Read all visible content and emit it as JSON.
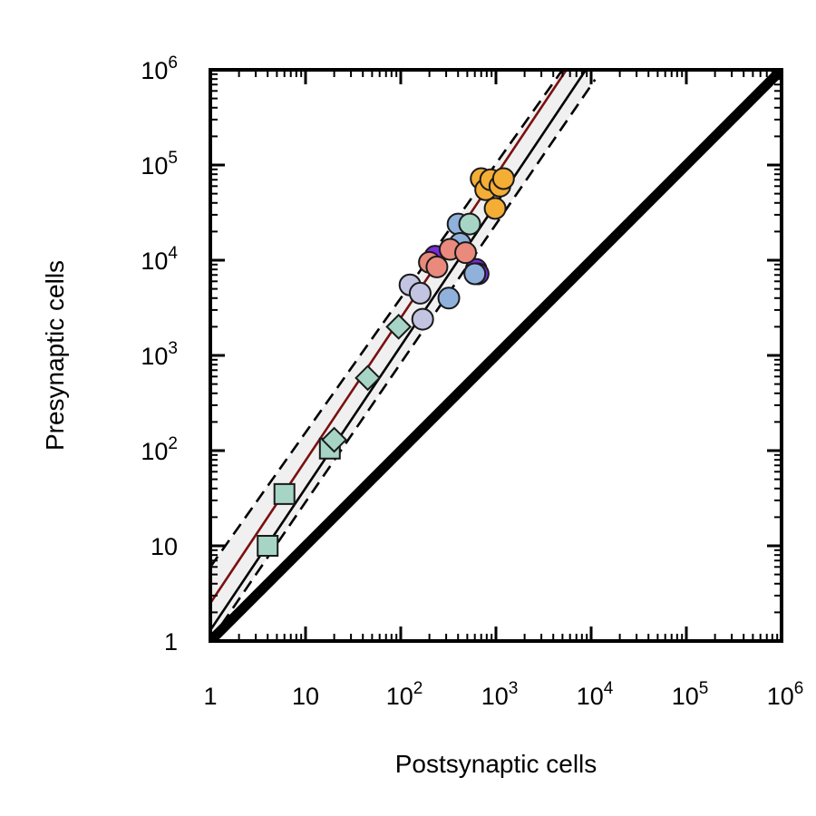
{
  "chart_data": {
    "type": "scatter",
    "scale": "log-log",
    "xlabel": "Postsynaptic cells",
    "ylabel": "Presynaptic cells",
    "xlim": [
      1,
      1000000
    ],
    "ylim": [
      1,
      1000000
    ],
    "x_ticks": [
      {
        "value": 1,
        "base": "1",
        "exp": ""
      },
      {
        "value": 10,
        "base": "10",
        "exp": ""
      },
      {
        "value": 100,
        "base": "10",
        "exp": "2"
      },
      {
        "value": 1000,
        "base": "10",
        "exp": "3"
      },
      {
        "value": 10000,
        "base": "10",
        "exp": "4"
      },
      {
        "value": 100000,
        "base": "10",
        "exp": "5"
      },
      {
        "value": 1000000,
        "base": "10",
        "exp": "6"
      }
    ],
    "y_ticks": [
      {
        "value": 1,
        "base": "1",
        "exp": ""
      },
      {
        "value": 10,
        "base": "10",
        "exp": ""
      },
      {
        "value": 100,
        "base": "10",
        "exp": "2"
      },
      {
        "value": 1000,
        "base": "10",
        "exp": "3"
      },
      {
        "value": 10000,
        "base": "10",
        "exp": "4"
      },
      {
        "value": 100000,
        "base": "10",
        "exp": "5"
      },
      {
        "value": 1000000,
        "base": "10",
        "exp": "6"
      }
    ],
    "lines": [
      {
        "name": "identity",
        "style": "thick",
        "color": "#000000",
        "x": [
          1,
          1000000
        ],
        "y": [
          1,
          1000000
        ]
      },
      {
        "name": "fit",
        "style": "solid",
        "color": "#000000",
        "x": [
          1,
          8800
        ],
        "y": [
          1.3,
          1000000
        ]
      },
      {
        "name": "fit-upper",
        "style": "dashed",
        "color": "#000000",
        "x": [
          1,
          5000
        ],
        "y": [
          6,
          1000000
        ]
      },
      {
        "name": "fit-lower",
        "style": "dashed",
        "color": "#000000",
        "x": [
          1,
          11000
        ],
        "y": [
          1,
          790000
        ]
      },
      {
        "name": "alt-fit",
        "style": "solid",
        "color": "#7a1010",
        "x": [
          1,
          5500
        ],
        "y": [
          2.5,
          1000000
        ]
      }
    ],
    "band": {
      "name": "confidence-band",
      "color": "#f0f0f0",
      "upper": {
        "x": [
          1,
          5000
        ],
        "y": [
          6,
          1000000
        ]
      },
      "lower": {
        "x": [
          1,
          11000
        ],
        "y": [
          1,
          790000
        ]
      }
    },
    "series": [
      {
        "name": "group-squares",
        "marker": "square",
        "color": "#a6d5c6",
        "points": [
          [
            4,
            10
          ],
          [
            6,
            35
          ],
          [
            18,
            105
          ]
        ]
      },
      {
        "name": "group-diamonds",
        "marker": "diamond",
        "color": "#a6d5c6",
        "points": [
          [
            20,
            130
          ],
          [
            45,
            580
          ],
          [
            95,
            2000
          ]
        ]
      },
      {
        "name": "group-lavender",
        "marker": "circle",
        "color": "#c3c3e2",
        "points": [
          [
            125,
            5500
          ],
          [
            160,
            4500
          ],
          [
            170,
            2400
          ]
        ]
      },
      {
        "name": "group-purple",
        "marker": "circle",
        "color": "#7a2be0",
        "points": [
          [
            230,
            11000
          ],
          [
            620,
            8000
          ],
          [
            650,
            7200
          ]
        ]
      },
      {
        "name": "group-blue",
        "marker": "circle",
        "color": "#8fb1dc",
        "points": [
          [
            320,
            4000
          ],
          [
            400,
            24000
          ],
          [
            420,
            15000
          ],
          [
            600,
            7200
          ]
        ]
      },
      {
        "name": "group-salmon",
        "marker": "circle",
        "color": "#e98a7d",
        "points": [
          [
            200,
            9500
          ],
          [
            240,
            8500
          ],
          [
            330,
            13000
          ],
          [
            480,
            12000
          ]
        ]
      },
      {
        "name": "group-teal",
        "marker": "circle",
        "color": "#a6d5c6",
        "points": [
          [
            530,
            24000
          ]
        ]
      },
      {
        "name": "group-orange",
        "marker": "circle",
        "color": "#f4ad35",
        "points": [
          [
            700,
            72000
          ],
          [
            780,
            55000
          ],
          [
            880,
            70000
          ],
          [
            980,
            35000
          ],
          [
            1100,
            60000
          ],
          [
            1200,
            72000
          ]
        ]
      }
    ]
  }
}
